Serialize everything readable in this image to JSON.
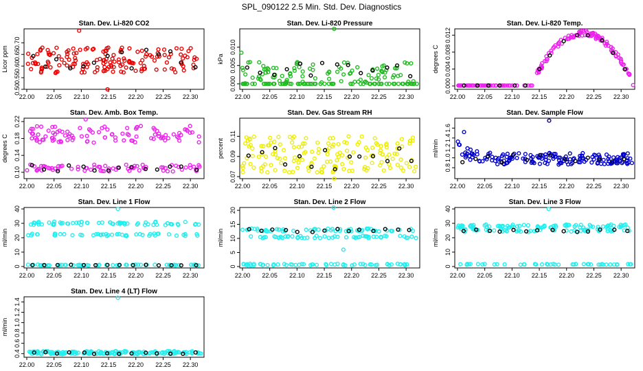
{
  "page_title": "SPL_090122  2.5 Min. Std. Dev. Diagnostics",
  "colors": {
    "red": "#ee0000",
    "green": "#22bb22",
    "magenta": "#ee22ee",
    "yellow": "#eeee00",
    "blue": "#0000cc",
    "cyan": "#22eeee",
    "black": "#000000"
  },
  "chart_data": [
    {
      "type": "scatter",
      "title": "Stan. Dev. Li-820 CO2",
      "ylabel": "Licor ppm",
      "color": "#ee0000",
      "xlim": [
        21.995,
        22.325
      ],
      "ylim": [
        0.5,
        0.76
      ],
      "xticks": [
        "22.00",
        "22.05",
        "22.10",
        "22.15",
        "22.20",
        "22.25",
        "22.30"
      ],
      "yticks": [
        "0.50",
        "0.55",
        "0.60",
        "0.65",
        "0.70"
      ],
      "series": [
        {
          "name": "main",
          "base": 0.625,
          "spread": 0.055,
          "shape": "flat",
          "n": 160
        },
        {
          "name": "black",
          "base": 0.63,
          "spread": 0.04,
          "shape": "flat",
          "n": 14
        }
      ],
      "outliers": [
        [
          22.096,
          0.752
        ],
        [
          22.148,
          0.48
        ]
      ]
    },
    {
      "type": "scatter",
      "title": "Stan. Dev. Li-820 Pressure",
      "ylabel": "kPa",
      "color": "#22bb22",
      "xlim": [
        21.995,
        22.325
      ],
      "ylim": [
        -0.0015,
        0.015
      ],
      "xticks": [
        "22.00",
        "22.05",
        "22.10",
        "22.15",
        "22.20",
        "22.25",
        "22.30"
      ],
      "yticks": [
        "0.000",
        "0.005",
        "0.010"
      ],
      "series": [
        {
          "name": "main",
          "base": 0.003,
          "spread": 0.003,
          "shape": "bands",
          "n": 170
        },
        {
          "name": "black",
          "base": 0.004,
          "spread": 0.002,
          "shape": "flat",
          "n": 14
        }
      ],
      "outliers": [
        [
          22.168,
          0.015
        ],
        [
          21.998,
          0.0085
        ]
      ]
    },
    {
      "type": "scatter",
      "title": "Stan. Dev. Li-820 Temp.",
      "ylabel": "degrees C",
      "color": "#ee22ee",
      "xlim": [
        21.995,
        22.325
      ],
      "ylim": [
        -0.0008,
        0.0135
      ],
      "xticks": [
        "22.00",
        "22.05",
        "22.10",
        "22.15",
        "22.20",
        "22.25",
        "22.30"
      ],
      "yticks": [
        "0.000",
        "0.004",
        "0.008",
        "0.012"
      ],
      "series": [
        {
          "name": "main",
          "base": 0.0,
          "spread": 0.0,
          "shape": "hump",
          "n": 170
        },
        {
          "name": "black",
          "base": 0.0,
          "spread": 0.0,
          "shape": "hump",
          "n": 14
        }
      ],
      "outliers": [
        [
          22.322,
          0.0002
        ]
      ]
    },
    {
      "type": "scatter",
      "title": "Stan. Dev. Amb. Box Temp.",
      "ylabel": "degrees C",
      "color": "#ee22ee",
      "xlim": [
        21.995,
        22.325
      ],
      "ylim": [
        0.085,
        0.228
      ],
      "xticks": [
        "22.00",
        "22.05",
        "22.10",
        "22.15",
        "22.20",
        "22.25",
        "22.30"
      ],
      "yticks": [
        "0.10",
        "0.14",
        "0.18",
        "0.22"
      ],
      "series": [
        {
          "name": "main",
          "base": 0.19,
          "spread": 0.02,
          "shape": "twoband",
          "n": 170
        },
        {
          "name": "black",
          "base": 0.11,
          "spread": 0.01,
          "shape": "flat",
          "n": 14
        }
      ],
      "outliers": [
        [
          22.108,
          0.225
        ]
      ]
    },
    {
      "type": "scatter",
      "title": "Stan. Dev. Gas Stream RH",
      "ylabel": "percent",
      "color": "#eeee00",
      "xlim": [
        21.995,
        22.325
      ],
      "ylim": [
        0.068,
        0.128
      ],
      "xticks": [
        "22.00",
        "22.05",
        "22.10",
        "22.15",
        "22.20",
        "22.25",
        "22.30"
      ],
      "yticks": [
        "0.07",
        "0.09",
        "0.11"
      ],
      "series": [
        {
          "name": "main",
          "base": 0.092,
          "spread": 0.018,
          "shape": "flat",
          "n": 170
        },
        {
          "name": "black",
          "base": 0.09,
          "spread": 0.013,
          "shape": "flat",
          "n": 14
        }
      ],
      "outliers": [
        [
          22.168,
          0.066
        ]
      ]
    },
    {
      "type": "scatter",
      "title": "Stan. Dev. Sample Flow",
      "ylabel": "ml/min",
      "color": "#0000cc",
      "xlim": [
        21.995,
        22.325
      ],
      "ylim": [
        0.58,
        1.8
      ],
      "xticks": [
        "22.00",
        "22.05",
        "22.10",
        "22.15",
        "22.20",
        "22.25",
        "22.30"
      ],
      "yticks": [
        "0.8",
        "1.0",
        "1.2",
        "1.4",
        "1.6"
      ],
      "series": [
        {
          "name": "main",
          "base": 0.98,
          "spread": 0.12,
          "shape": "decay",
          "n": 170
        },
        {
          "name": "black",
          "base": 0.98,
          "spread": 0.08,
          "shape": "flat",
          "n": 14
        }
      ],
      "outliers": [
        [
          22.168,
          1.75
        ],
        [
          22.012,
          1.52
        ]
      ]
    },
    {
      "type": "scatter",
      "title": "Stan. Dev. Line 1 Flow",
      "ylabel": "ml/min",
      "color": "#22eeee",
      "xlim": [
        21.995,
        22.325
      ],
      "ylim": [
        -1,
        41
      ],
      "xticks": [
        "22.00",
        "22.05",
        "22.10",
        "22.15",
        "22.20",
        "22.25",
        "22.30"
      ],
      "yticks": [
        "0",
        "10",
        "20",
        "30",
        "40"
      ],
      "series": [
        {
          "name": "main",
          "base": 0,
          "spread": 0,
          "shape": "three",
          "levels": [
            30,
            22,
            1
          ],
          "n": 170
        },
        {
          "name": "black",
          "base": 1,
          "spread": 0.2,
          "shape": "flat",
          "n": 14
        }
      ],
      "outliers": [
        [
          22.167,
          40
        ]
      ]
    },
    {
      "type": "scatter",
      "title": "Stan. Dev. Line 2 Flow",
      "ylabel": "ml/min",
      "color": "#22eeee",
      "xlim": [
        21.995,
        22.325
      ],
      "ylim": [
        -0.5,
        21
      ],
      "xticks": [
        "22.00",
        "22.05",
        "22.10",
        "22.15",
        "22.20",
        "22.25",
        "22.30"
      ],
      "yticks": [
        "0",
        "5",
        "10",
        "15",
        "20"
      ],
      "series": [
        {
          "name": "main",
          "base": 0,
          "spread": 0,
          "shape": "three",
          "levels": [
            13,
            10.5,
            0.7
          ],
          "n": 170
        },
        {
          "name": "black",
          "base": 12.8,
          "spread": 0.6,
          "shape": "flat",
          "n": 14
        }
      ],
      "outliers": [
        [
          22.167,
          21
        ],
        [
          22.185,
          6
        ]
      ]
    },
    {
      "type": "scatter",
      "title": "Stan. Dev. Line 3 Flow",
      "ylabel": "ml/min",
      "color": "#22eeee",
      "xlim": [
        21.995,
        22.325
      ],
      "ylim": [
        -1,
        41
      ],
      "xticks": [
        "22.00",
        "22.05",
        "22.10",
        "22.15",
        "22.20",
        "22.25",
        "22.30"
      ],
      "yticks": [
        "0",
        "10",
        "20",
        "30",
        "40"
      ],
      "series": [
        {
          "name": "main",
          "base": 0,
          "spread": 0,
          "shape": "three",
          "levels": [
            28,
            25,
            1.5
          ],
          "n": 170
        },
        {
          "name": "black",
          "base": 25,
          "spread": 1,
          "shape": "flat",
          "n": 14
        }
      ],
      "outliers": [
        [
          22.167,
          40
        ]
      ]
    },
    {
      "type": "scatter",
      "title": "Stan. Dev. Line 4 (LT) Flow",
      "ylabel": "ml/min",
      "color": "#22eeee",
      "xlim": [
        21.995,
        22.325
      ],
      "ylim": [
        0.33,
        1.5
      ],
      "xticks": [
        "22.00",
        "22.05",
        "22.10",
        "22.15",
        "22.20",
        "22.25",
        "22.30"
      ],
      "yticks": [
        "0.4",
        "0.6",
        "0.8",
        "1.0",
        "1.2",
        "1.4"
      ],
      "series": [
        {
          "name": "main",
          "base": 0.42,
          "spread": 0.03,
          "shape": "flat",
          "n": 170
        },
        {
          "name": "black",
          "base": 0.41,
          "spread": 0.02,
          "shape": "flat",
          "n": 14
        }
      ],
      "outliers": [
        [
          22.167,
          1.48
        ]
      ]
    }
  ]
}
